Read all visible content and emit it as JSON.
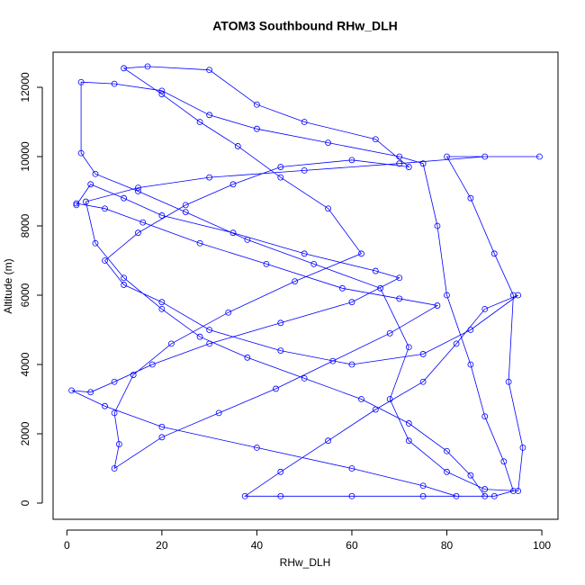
{
  "chart_data": {
    "type": "line",
    "title": "ATOM3 Southbound RHw_DLH",
    "x_label": "RHw_DLH",
    "y_label": "Altitude (m)",
    "color": "#0000ff",
    "markers": true,
    "xlim": [
      -2.9,
      103.4
    ],
    "ylim": [
      -468,
      13013
    ],
    "xticks": [
      0,
      20,
      40,
      60,
      80,
      100
    ],
    "yticks": [
      0,
      2000,
      4000,
      6000,
      8000,
      10000,
      12000
    ],
    "x": [
      2,
      5,
      12,
      20,
      35,
      50,
      65,
      70,
      60,
      45,
      30,
      18,
      10,
      5,
      1,
      8,
      20,
      40,
      60,
      75,
      82,
      90,
      94,
      92,
      88,
      85,
      80,
      78,
      75,
      70,
      55,
      40,
      30,
      20,
      10,
      3,
      3,
      6,
      15,
      25,
      38,
      52,
      66,
      72,
      68,
      72,
      80,
      88,
      95,
      96,
      93,
      94,
      90,
      85,
      80,
      99.5,
      88,
      70,
      50,
      30,
      15,
      4,
      6,
      12,
      20,
      28,
      38,
      50,
      62,
      72,
      80,
      85,
      88,
      75,
      60,
      45,
      37.5,
      45,
      55,
      65,
      75,
      82,
      88,
      95,
      85,
      75,
      60,
      45,
      30,
      20,
      12,
      8,
      15,
      25,
      35,
      45,
      60,
      72,
      65,
      50,
      40,
      30,
      17,
      12,
      20,
      28,
      36,
      45,
      55,
      62,
      48,
      34,
      22,
      14,
      10,
      11,
      10,
      20,
      32,
      44,
      56,
      68,
      78,
      70,
      58,
      42,
      28,
      16,
      8,
      2
    ],
    "values": [
      8600,
      9200,
      8800,
      8300,
      7800,
      7200,
      6700,
      6500,
      5800,
      5200,
      4600,
      4000,
      3500,
      3200,
      3250,
      2800,
      2200,
      1600,
      1000,
      500,
      200,
      200,
      350,
      1200,
      2500,
      4000,
      6000,
      8000,
      9800,
      10000,
      10400,
      10800,
      11200,
      11900,
      12100,
      12150,
      10100,
      9500,
      9000,
      8400,
      7600,
      6900,
      6200,
      4500,
      3000,
      1800,
      900,
      400,
      350,
      1600,
      3500,
      6000,
      7200,
      8800,
      10000,
      10000,
      10000,
      9800,
      9600,
      9400,
      9100,
      8700,
      7500,
      6500,
      5600,
      4800,
      4200,
      3600,
      3000,
      2300,
      1500,
      800,
      200,
      200,
      200,
      200,
      200,
      900,
      1800,
      2700,
      3500,
      4600,
      5600,
      6000,
      5000,
      4300,
      4000,
      4400,
      5000,
      5800,
      6300,
      7000,
      7800,
      8600,
      9200,
      9700,
      9900,
      9700,
      10500,
      11000,
      11500,
      12500,
      12600,
      12550,
      11800,
      11000,
      10300,
      9400,
      8500,
      7200,
      6400,
      5500,
      4600,
      3700,
      2600,
      1700,
      1000,
      1900,
      2600,
      3300,
      4100,
      4900,
      5700,
      5900,
      6200,
      6900,
      7500,
      8100,
      8500,
      8650
    ]
  }
}
